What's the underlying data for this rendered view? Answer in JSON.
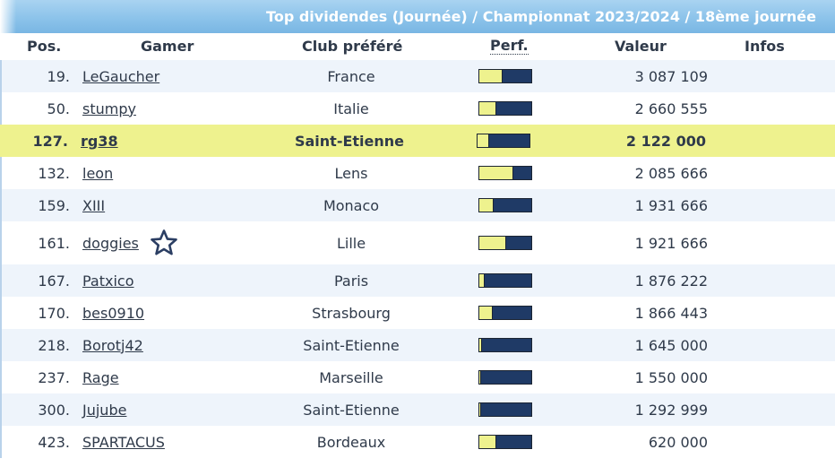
{
  "title": "Top dividendes (Journée) / Championnat 2023/2024 / 18ème journée",
  "columns": {
    "pos": "Pos.",
    "gamer": "Gamer",
    "club": "Club préféré",
    "perf": "Perf.",
    "valeur": "Valeur",
    "infos": "Infos"
  },
  "colors": {
    "highlight": "#eef28e",
    "bar_bg": "#1f3a66",
    "header": "#8cc3ea"
  },
  "rows": [
    {
      "pos": "19.",
      "gamer": "LeGaucher",
      "club": "France",
      "perf": 0.45,
      "valeur": "3 087 109"
    },
    {
      "pos": "50.",
      "gamer": "stumpy",
      "club": "Italie",
      "perf": 0.33,
      "valeur": "2 660 555"
    },
    {
      "pos": "127.",
      "gamer": "rg38",
      "club": "Saint-Etienne",
      "perf": 0.22,
      "valeur": "2 122 000",
      "highlight": true
    },
    {
      "pos": "132.",
      "gamer": "leon",
      "club": "Lens",
      "perf": 0.65,
      "valeur": "2 085 666"
    },
    {
      "pos": "159.",
      "gamer": "XIII",
      "club": "Monaco",
      "perf": 0.28,
      "valeur": "1 931 666"
    },
    {
      "pos": "161.",
      "gamer": "doggies",
      "club": "Lille",
      "perf": 0.52,
      "valeur": "1 921 666",
      "icon": "star-icon"
    },
    {
      "pos": "167.",
      "gamer": "Patxico",
      "club": "Paris",
      "perf": 0.1,
      "valeur": "1 876 222"
    },
    {
      "pos": "170.",
      "gamer": "bes0910",
      "club": "Strasbourg",
      "perf": 0.26,
      "valeur": "1 866 443"
    },
    {
      "pos": "218.",
      "gamer": "Borotj42",
      "club": "Saint-Etienne",
      "perf": 0.05,
      "valeur": "1 645 000"
    },
    {
      "pos": "237.",
      "gamer": "Rage",
      "club": "Marseille",
      "perf": 0.04,
      "valeur": "1 550 000"
    },
    {
      "pos": "300.",
      "gamer": "Jujube",
      "club": "Saint-Etienne",
      "perf": 0.04,
      "valeur": "1 292 999"
    },
    {
      "pos": "423.",
      "gamer": "SPARTACUS",
      "club": "Bordeaux",
      "perf": 0.33,
      "valeur": "620 000"
    }
  ]
}
